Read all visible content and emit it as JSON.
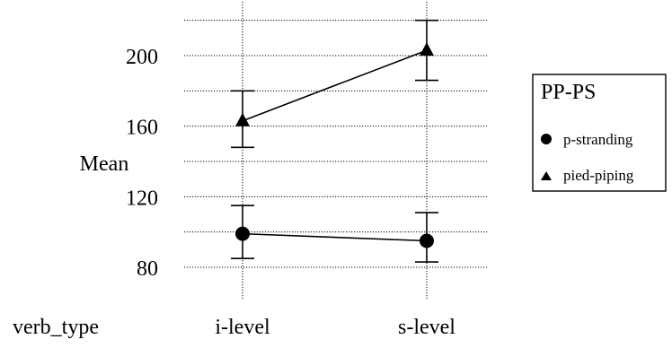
{
  "chart_data": {
    "type": "line",
    "title": "",
    "xlabel": "verb_type",
    "ylabel": "Mean",
    "categories": [
      "i-level",
      "s-level"
    ],
    "ylim": [
      66,
      226
    ],
    "yticks": [
      80,
      120,
      160,
      200
    ],
    "grid": true,
    "legend": {
      "title": "PP-PS",
      "placement": "right"
    },
    "series": [
      {
        "name": "p-stranding",
        "marker": "circle",
        "values": [
          99,
          95
        ],
        "error_low": [
          85,
          83
        ],
        "error_high": [
          115,
          111
        ]
      },
      {
        "name": "pied-piping",
        "marker": "triangle",
        "values": [
          163,
          203
        ],
        "error_low": [
          148,
          186
        ],
        "error_high": [
          180,
          220
        ]
      }
    ]
  }
}
